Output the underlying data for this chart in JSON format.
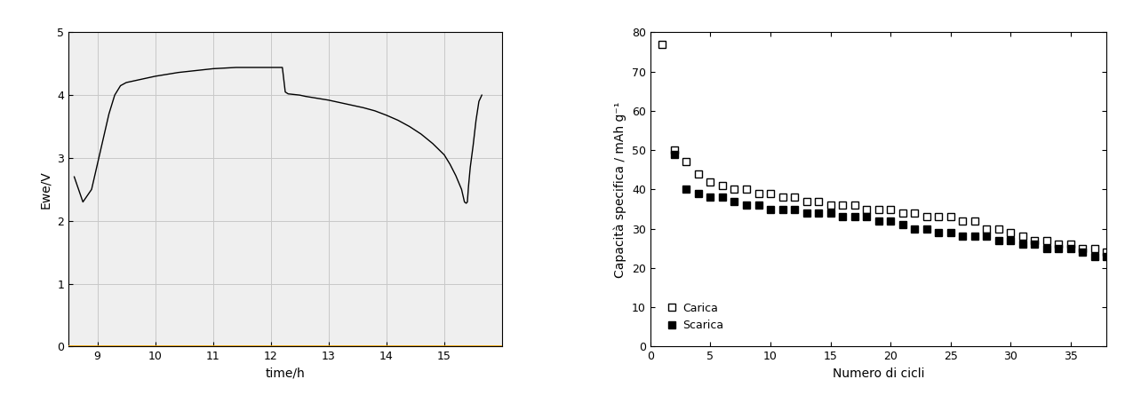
{
  "left_chart": {
    "xlabel": "time/h",
    "ylabel": "Ewe/V",
    "xlim": [
      8.5,
      16.0
    ],
    "ylim": [
      0,
      5
    ],
    "xticks": [
      9,
      10,
      11,
      12,
      13,
      14,
      15
    ],
    "yticks": [
      0,
      1,
      2,
      3,
      4,
      5
    ],
    "grid": true,
    "grid_color": "#c8c8c8",
    "line_color": "#000000",
    "bottom_line_color": "#E8A000",
    "curve": [
      [
        8.6,
        2.7
      ],
      [
        8.75,
        2.3
      ],
      [
        8.9,
        2.5
      ],
      [
        9.0,
        2.9
      ],
      [
        9.1,
        3.3
      ],
      [
        9.2,
        3.7
      ],
      [
        9.3,
        4.0
      ],
      [
        9.4,
        4.15
      ],
      [
        9.5,
        4.2
      ],
      [
        9.6,
        4.22
      ],
      [
        9.7,
        4.24
      ],
      [
        9.8,
        4.26
      ],
      [
        9.9,
        4.28
      ],
      [
        10.0,
        4.3
      ],
      [
        10.2,
        4.33
      ],
      [
        10.4,
        4.36
      ],
      [
        10.6,
        4.38
      ],
      [
        10.8,
        4.4
      ],
      [
        11.0,
        4.42
      ],
      [
        11.2,
        4.43
      ],
      [
        11.4,
        4.44
      ],
      [
        11.6,
        4.44
      ],
      [
        11.8,
        4.44
      ],
      [
        12.0,
        4.44
      ],
      [
        12.1,
        4.44
      ],
      [
        12.15,
        4.44
      ],
      [
        12.2,
        4.44
      ],
      [
        12.25,
        4.05
      ],
      [
        12.3,
        4.02
      ],
      [
        12.4,
        4.01
      ],
      [
        12.5,
        4.0
      ],
      [
        12.6,
        3.98
      ],
      [
        12.8,
        3.95
      ],
      [
        13.0,
        3.92
      ],
      [
        13.2,
        3.88
      ],
      [
        13.4,
        3.84
      ],
      [
        13.6,
        3.8
      ],
      [
        13.8,
        3.75
      ],
      [
        14.0,
        3.68
      ],
      [
        14.2,
        3.6
      ],
      [
        14.4,
        3.5
      ],
      [
        14.6,
        3.38
      ],
      [
        14.8,
        3.23
      ],
      [
        15.0,
        3.05
      ],
      [
        15.1,
        2.9
      ],
      [
        15.2,
        2.72
      ],
      [
        15.3,
        2.5
      ],
      [
        15.35,
        2.3
      ],
      [
        15.38,
        2.28
      ],
      [
        15.4,
        2.3
      ],
      [
        15.42,
        2.55
      ],
      [
        15.45,
        2.85
      ],
      [
        15.5,
        3.2
      ],
      [
        15.55,
        3.6
      ],
      [
        15.6,
        3.9
      ],
      [
        15.65,
        4.0
      ]
    ]
  },
  "right_chart": {
    "xlabel": "Numero di cicli",
    "ylabel": "Capacità specifica / mAh g⁻¹",
    "xlim": [
      0,
      38
    ],
    "ylim": [
      0,
      80
    ],
    "xticks": [
      0,
      5,
      10,
      15,
      20,
      25,
      30,
      35
    ],
    "yticks": [
      0,
      10,
      20,
      30,
      40,
      50,
      60,
      70,
      80
    ],
    "grid": false,
    "carica_x": [
      1,
      2,
      3,
      4,
      5,
      6,
      7,
      8,
      9,
      10,
      11,
      12,
      13,
      14,
      15,
      16,
      17,
      18,
      19,
      20,
      21,
      22,
      23,
      24,
      25,
      26,
      27,
      28,
      29,
      30,
      31,
      32,
      33,
      34,
      35,
      36,
      37,
      38
    ],
    "carica_y": [
      77,
      50,
      47,
      44,
      42,
      41,
      40,
      40,
      39,
      39,
      38,
      38,
      37,
      37,
      36,
      36,
      36,
      35,
      35,
      35,
      34,
      34,
      33,
      33,
      33,
      32,
      32,
      30,
      30,
      29,
      28,
      27,
      27,
      26,
      26,
      25,
      25,
      24
    ],
    "scarica_x": [
      2,
      3,
      4,
      5,
      6,
      7,
      8,
      9,
      10,
      11,
      12,
      13,
      14,
      15,
      16,
      17,
      18,
      19,
      20,
      21,
      22,
      23,
      24,
      25,
      26,
      27,
      28,
      29,
      30,
      31,
      32,
      33,
      34,
      35,
      36,
      37,
      38
    ],
    "scarica_y": [
      49,
      40,
      39,
      38,
      38,
      37,
      36,
      36,
      35,
      35,
      35,
      34,
      34,
      34,
      33,
      33,
      33,
      32,
      32,
      31,
      30,
      30,
      29,
      29,
      28,
      28,
      28,
      27,
      27,
      26,
      26,
      25,
      25,
      25,
      24,
      23,
      23
    ],
    "legend_carica": "Carica",
    "legend_scarica": "Scarica",
    "marker_size": 6
  },
  "background_color": "#ffffff",
  "figure_width": 12.84,
  "figure_height": 4.54
}
